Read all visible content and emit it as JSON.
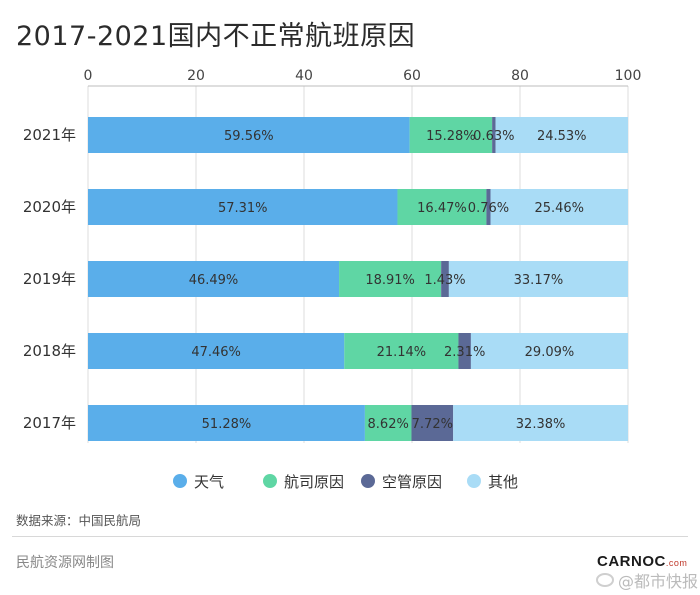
{
  "title": "2017-2021国内不正常航班原因",
  "source": "数据来源：中国民航局",
  "maker": "民航资源网制图",
  "logo": {
    "name": "CARNOC",
    "suffix": ".com"
  },
  "watermark": "@都市快报",
  "colors": {
    "weather": "#5aaeea",
    "airline": "#5fd6a4",
    "atc": "#5b6996",
    "other": "#a9dcf6"
  },
  "chart_data": {
    "type": "bar",
    "orientation": "horizontal",
    "stacked": true,
    "categories": [
      "2021年",
      "2020年",
      "2019年",
      "2018年",
      "2017年"
    ],
    "xlim": [
      0,
      100
    ],
    "xticks": [
      0,
      20,
      40,
      60,
      80,
      100
    ],
    "grid": true,
    "legend_position": "bottom",
    "series": [
      {
        "name": "天气",
        "color": "#5aaeea",
        "values": [
          59.56,
          57.31,
          46.49,
          47.46,
          51.28
        ],
        "labels": [
          "59.56%",
          "57.31%",
          "46.49%",
          "47.46%",
          "51.28%"
        ]
      },
      {
        "name": "航司原因",
        "color": "#5fd6a4",
        "values": [
          15.28,
          16.47,
          18.91,
          21.14,
          8.62
        ],
        "labels": [
          "15.28%",
          "16.47%",
          "18.91%",
          "21.14%",
          "8.62%"
        ]
      },
      {
        "name": "空管原因",
        "color": "#5b6996",
        "values": [
          0.63,
          0.76,
          1.43,
          2.31,
          7.72
        ],
        "labels": [
          "0.63%",
          "0.76%",
          "1.43%",
          "2.31%",
          "7.72%"
        ]
      },
      {
        "name": "其他",
        "color": "#a9dcf6",
        "values": [
          24.53,
          25.46,
          33.17,
          29.09,
          32.38
        ],
        "labels": [
          "24.53%",
          "25.46%",
          "33.17%",
          "29.09%",
          "32.38%"
        ]
      }
    ]
  }
}
